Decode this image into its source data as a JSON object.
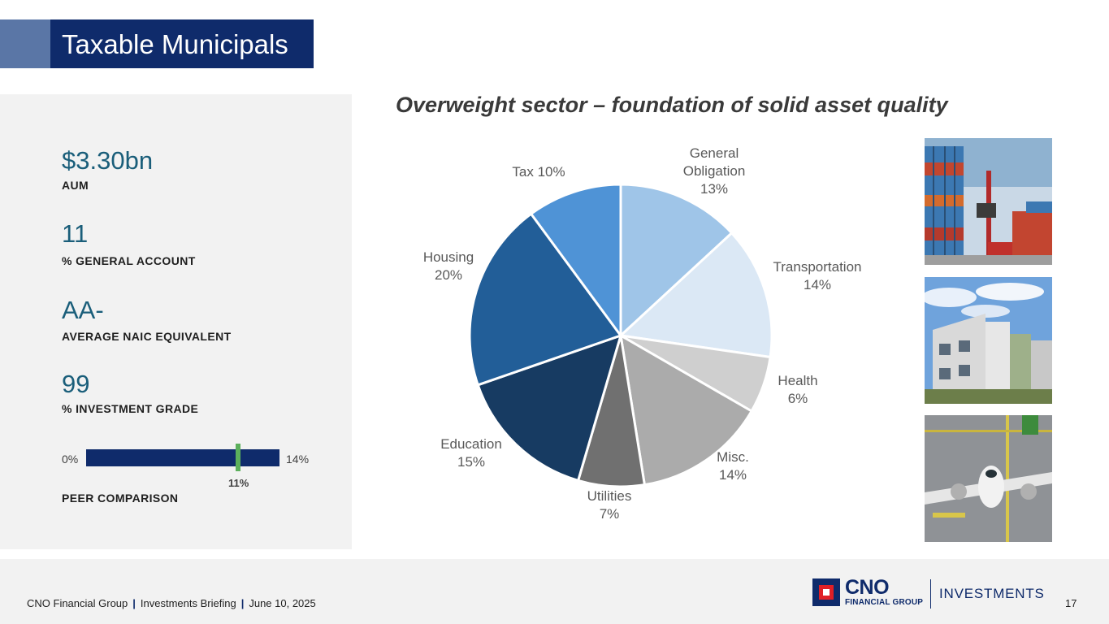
{
  "slide": {
    "title": "Taxable Municipals",
    "subtitle": "Overweight sector – foundation of solid asset quality"
  },
  "metrics": [
    {
      "value": "$3.30bn",
      "label": "AUM"
    },
    {
      "value": "11",
      "label": "% GENERAL ACCOUNT"
    },
    {
      "value": "AA-",
      "label": "AVERAGE NAIC EQUIVALENT"
    },
    {
      "value": "99",
      "label": "% INVESTMENT GRADE"
    }
  ],
  "peer": {
    "min_label": "0%",
    "max_label": "14%",
    "value_label": "11%",
    "value": 11,
    "min": 0,
    "max": 14,
    "label": "PEER COMPARISON"
  },
  "chart_data": {
    "type": "pie",
    "title": "",
    "slices": [
      {
        "lines": [
          "General",
          "Obligation",
          "13%"
        ],
        "value": 13,
        "color": "#9fc5e8"
      },
      {
        "lines": [
          "Transportation",
          "14%"
        ],
        "value": 14,
        "color": "#dbe8f5"
      },
      {
        "lines": [
          "Health",
          "6%"
        ],
        "value": 6,
        "color": "#cfcfcf"
      },
      {
        "lines": [
          "Misc.",
          "14%"
        ],
        "value": 14,
        "color": "#ababab"
      },
      {
        "lines": [
          "Utilities",
          "7%"
        ],
        "value": 7,
        "color": "#707070"
      },
      {
        "lines": [
          "Education",
          "15%"
        ],
        "value": 15,
        "color": "#173b62"
      },
      {
        "lines": [
          "Housing",
          "20%"
        ],
        "value": 20,
        "color": "#225e98"
      },
      {
        "lines": [
          "Tax 10%"
        ],
        "value": 10,
        "color": "#4f93d6"
      }
    ]
  },
  "footer": {
    "company": "CNO Financial Group",
    "event": "Investments Briefing",
    "date": "June 10, 2025",
    "page": "17",
    "sep": "|"
  },
  "logo": {
    "name": "CNO",
    "sub": "FINANCIAL GROUP",
    "division": "INVESTMENTS"
  },
  "colors": {
    "navy": "#0f2b6b",
    "teal": "#1a5e7a",
    "green": "#5cb05c",
    "red": "#e01f26"
  }
}
